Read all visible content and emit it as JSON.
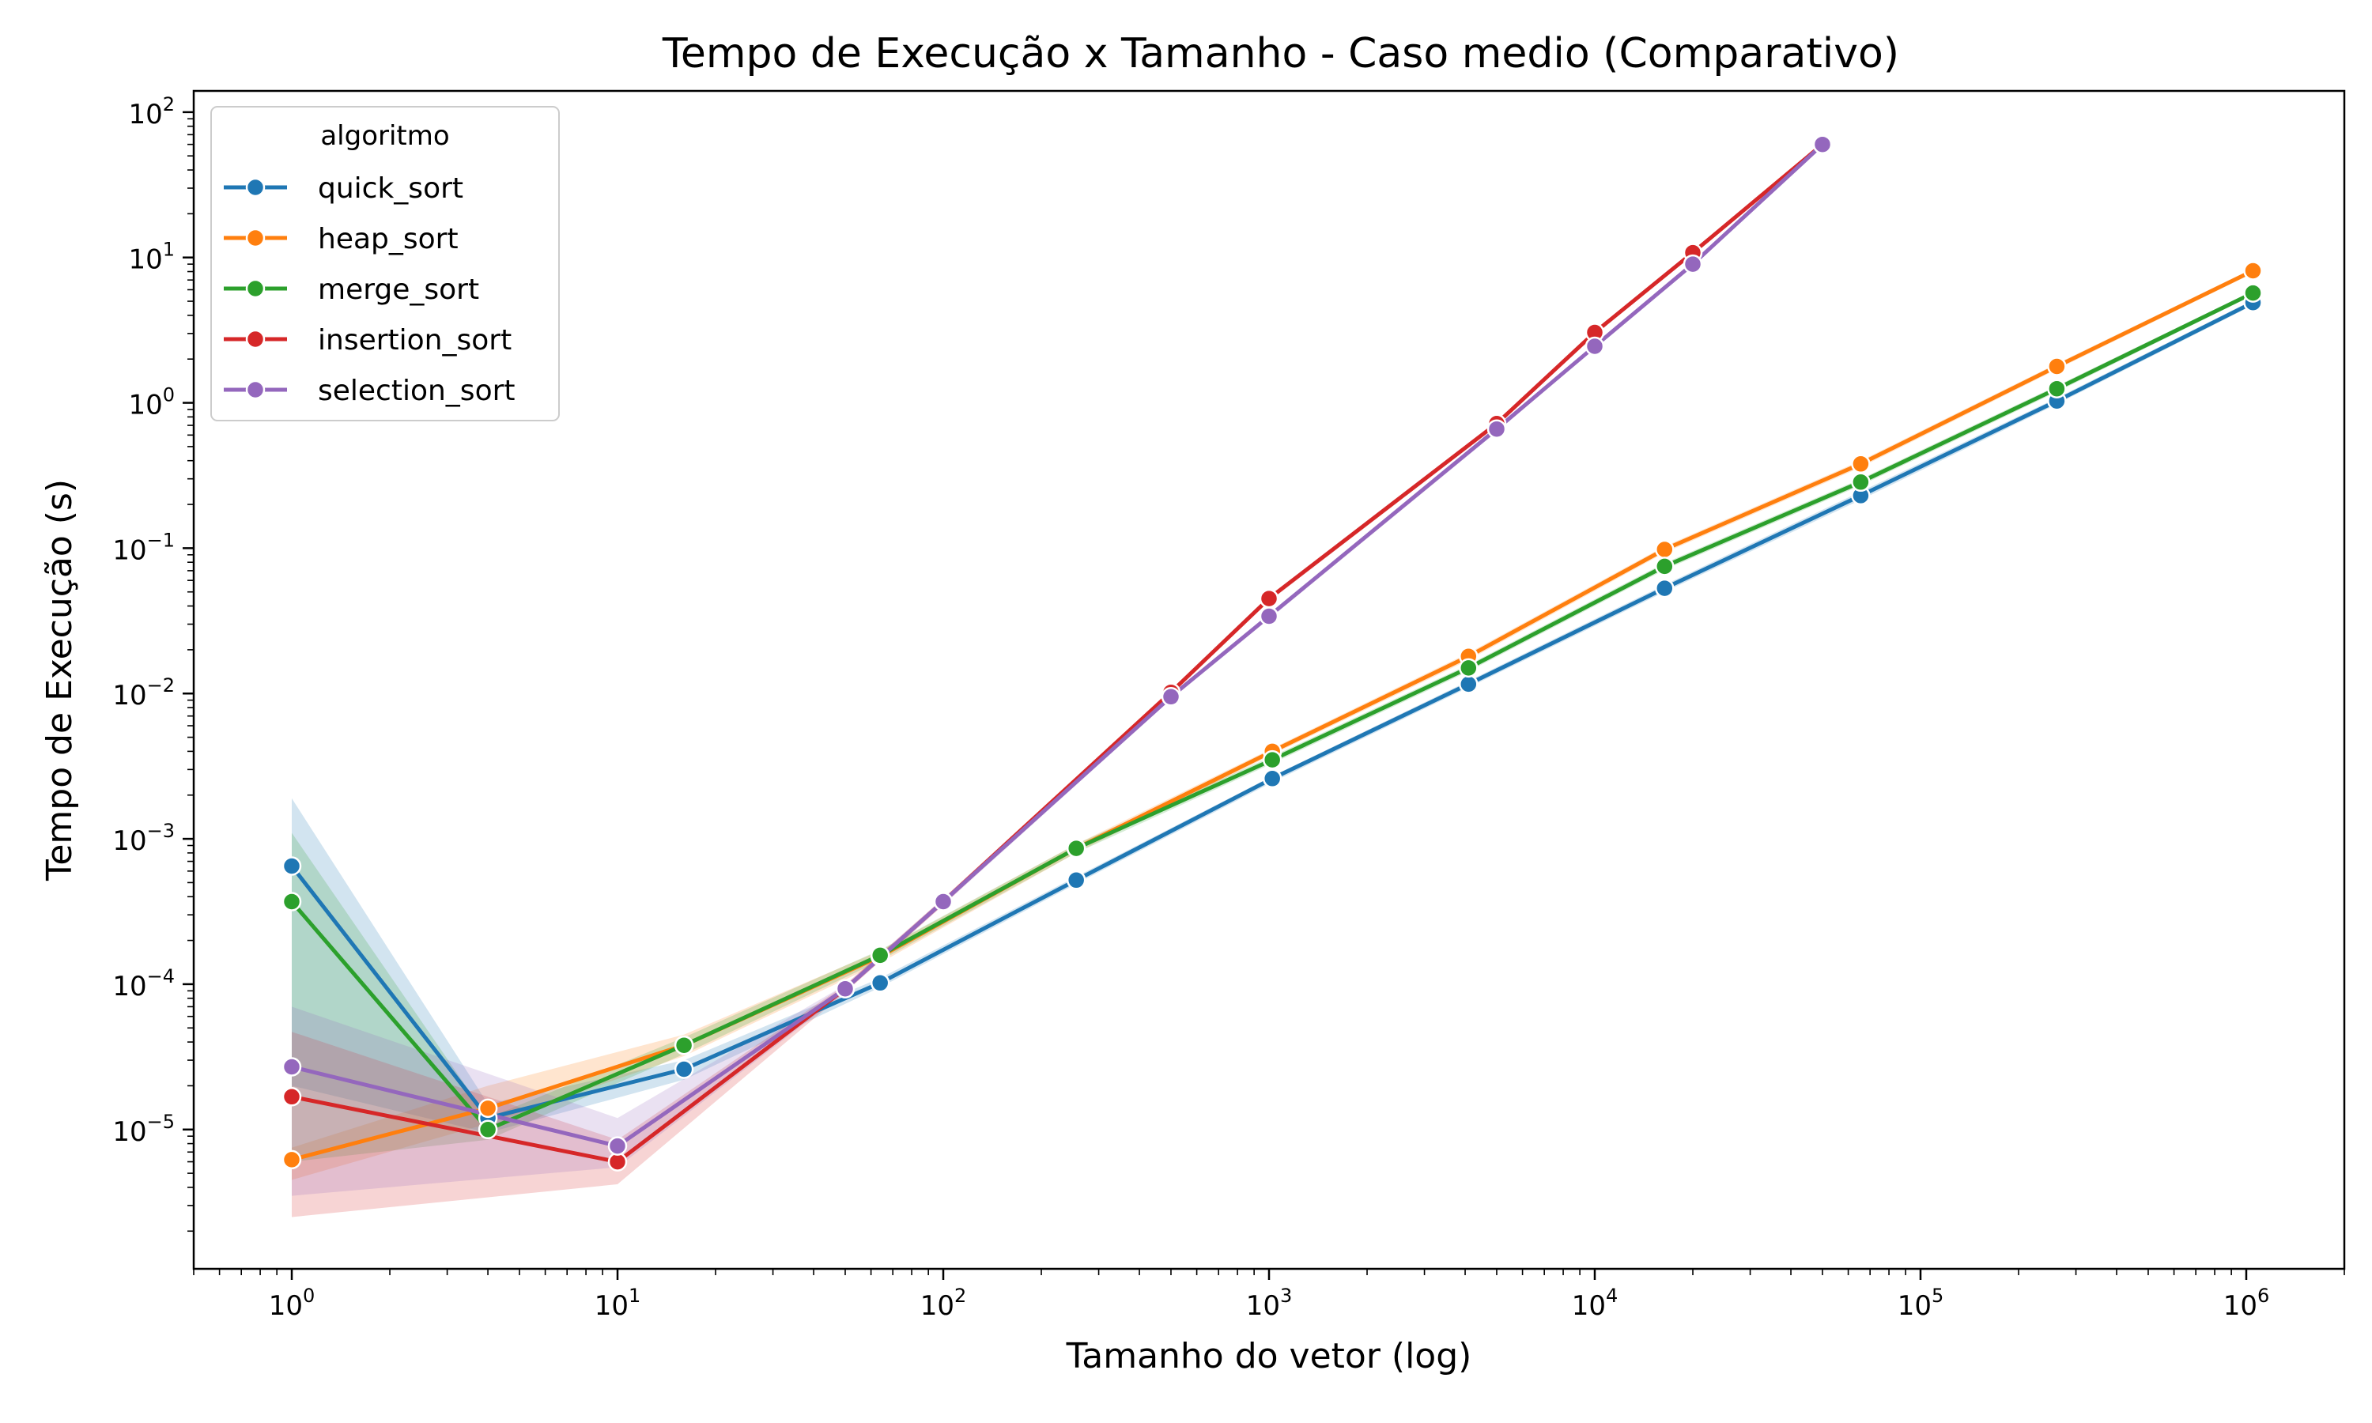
{
  "chart_data": {
    "type": "line",
    "title": "Tempo de Execução x Tamanho - Caso medio (Comparativo)",
    "xlabel": "Tamanho do vetor (log)",
    "ylabel": "Tempo de Execução (s)",
    "x_scale": "log",
    "y_scale": "log",
    "xlim": [
      0.5,
      2000000
    ],
    "ylim": [
      1.1e-06,
      140
    ],
    "x_ticks": [
      {
        "base": "10",
        "exp": "0",
        "value": 1
      },
      {
        "base": "10",
        "exp": "1",
        "value": 10
      },
      {
        "base": "10",
        "exp": "2",
        "value": 100
      },
      {
        "base": "10",
        "exp": "3",
        "value": 1000
      },
      {
        "base": "10",
        "exp": "4",
        "value": 10000
      },
      {
        "base": "10",
        "exp": "5",
        "value": 100000
      },
      {
        "base": "10",
        "exp": "6",
        "value": 1000000
      }
    ],
    "y_ticks": [
      {
        "base": "10",
        "exp": "−5",
        "value": 1e-05
      },
      {
        "base": "10",
        "exp": "−4",
        "value": 0.0001
      },
      {
        "base": "10",
        "exp": "−3",
        "value": 0.001
      },
      {
        "base": "10",
        "exp": "−2",
        "value": 0.01
      },
      {
        "base": "10",
        "exp": "−1",
        "value": 0.1
      },
      {
        "base": "10",
        "exp": "0",
        "value": 1
      },
      {
        "base": "10",
        "exp": "1",
        "value": 10
      },
      {
        "base": "10",
        "exp": "2",
        "value": 100
      }
    ],
    "grid": false,
    "legend": {
      "title": "algoritmo",
      "position": "top-left"
    },
    "series": [
      {
        "name": "quick_sort",
        "color": "#1f77b4",
        "x": [
          1,
          4,
          16,
          64,
          256,
          1024,
          4096,
          16384,
          65536,
          262144,
          1048576
        ],
        "y": [
          0.00065,
          1.2e-05,
          2.6e-05,
          0.000102,
          0.00052,
          0.0026,
          0.0116,
          0.053,
          0.23,
          1.03,
          4.9
        ],
        "y_low": [
          2e-05,
          9.5e-06,
          2.2e-05,
          9.5e-05,
          0.00049,
          0.00245,
          0.011,
          0.05,
          0.215,
          0.98,
          4.7
        ],
        "y_high": [
          0.0019,
          1.5e-05,
          3e-05,
          0.00011,
          0.00055,
          0.0027,
          0.0122,
          0.056,
          0.245,
          1.08,
          5.1
        ]
      },
      {
        "name": "heap_sort",
        "color": "#ff7f0e",
        "x": [
          1,
          4,
          16,
          64,
          256,
          1024,
          4096,
          16384,
          65536,
          262144,
          1048576
        ],
        "y": [
          6.2e-06,
          1.4e-05,
          3.8e-05,
          0.000155,
          0.00086,
          0.004,
          0.018,
          0.098,
          0.38,
          1.78,
          8.1
        ],
        "y_low": [
          4.5e-06,
          1.1e-05,
          3.2e-05,
          0.00014,
          0.0008,
          0.0038,
          0.017,
          0.093,
          0.36,
          1.7,
          7.8
        ],
        "y_high": [
          7.5e-06,
          2e-05,
          4.5e-05,
          0.00017,
          0.00092,
          0.0042,
          0.019,
          0.103,
          0.4,
          1.86,
          8.4
        ]
      },
      {
        "name": "merge_sort",
        "color": "#2ca02c",
        "x": [
          1,
          4,
          16,
          64,
          256,
          1024,
          4096,
          16384,
          65536,
          262144,
          1048576
        ],
        "y": [
          0.00037,
          1e-05,
          3.8e-05,
          0.000158,
          0.00086,
          0.0035,
          0.015,
          0.075,
          0.285,
          1.25,
          5.7
        ],
        "y_low": [
          6e-06,
          8.5e-06,
          3.3e-05,
          0.000145,
          0.0008,
          0.0033,
          0.0142,
          0.071,
          0.27,
          1.19,
          5.5
        ],
        "y_high": [
          0.0011,
          1.2e-05,
          4.3e-05,
          0.000172,
          0.00092,
          0.0037,
          0.0158,
          0.079,
          0.3,
          1.31,
          5.9
        ]
      },
      {
        "name": "insertion_sort",
        "color": "#d62728",
        "x": [
          1,
          10,
          50,
          100,
          500,
          1000,
          5000,
          10000,
          20000,
          50000
        ],
        "y": [
          1.68e-05,
          6e-06,
          9.3e-05,
          0.00037,
          0.0102,
          0.045,
          0.72,
          3.05,
          10.8,
          60
        ],
        "y_low": [
          2.5e-06,
          4.2e-06,
          8.8e-05,
          0.00035,
          0.0098,
          0.043,
          0.69,
          2.95,
          10.4,
          58
        ],
        "y_high": [
          4.7e-05,
          8.5e-06,
          9.9e-05,
          0.00039,
          0.0106,
          0.047,
          0.75,
          3.15,
          11.2,
          62
        ]
      },
      {
        "name": "selection_sort",
        "color": "#9467bd",
        "x": [
          1,
          10,
          50,
          100,
          500,
          1000,
          5000,
          10000,
          20000,
          50000
        ],
        "y": [
          2.7e-05,
          7.7e-06,
          9.3e-05,
          0.00037,
          0.0095,
          0.034,
          0.66,
          2.45,
          9.0,
          60
        ],
        "y_low": [
          3.5e-06,
          5.5e-06,
          8.8e-05,
          0.00035,
          0.0091,
          0.0325,
          0.63,
          2.37,
          8.7,
          58
        ],
        "y_high": [
          7e-05,
          1.2e-05,
          9.9e-05,
          0.00039,
          0.0099,
          0.0355,
          0.69,
          2.53,
          9.3,
          62
        ]
      }
    ]
  }
}
